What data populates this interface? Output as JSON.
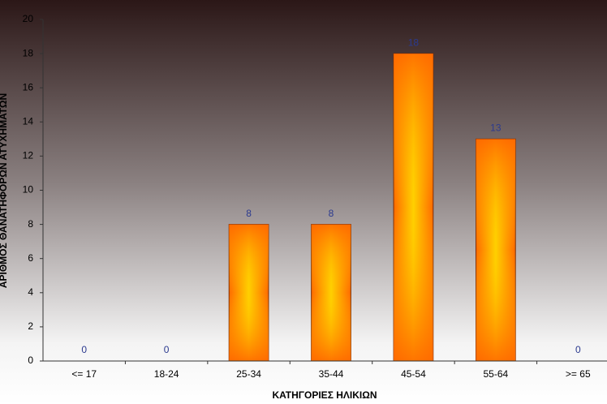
{
  "chart_data": {
    "type": "bar",
    "x_label": "ΚΑΤΗΓΟΡΙΕΣ ΗΛΙΚΙΩΝ",
    "y_label": "ΑΡΙΘΜΟΣ ΘΑΝΑΤΗΦΟΡΩΝ ΑΤΥΧΗΜΑΤΩΝ",
    "categories": [
      "<= 17",
      "18-24",
      "25-34",
      "35-44",
      "45-54",
      "55-64",
      ">= 65"
    ],
    "values": [
      0,
      0,
      8,
      8,
      18,
      13,
      0
    ],
    "color": "#ff8c00",
    "label_color": "#2b3a8f",
    "ylim": [
      0,
      20
    ],
    "yticks": [
      0,
      2,
      4,
      6,
      8,
      10,
      12,
      14,
      16,
      18,
      20
    ]
  }
}
